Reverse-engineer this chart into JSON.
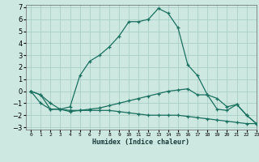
{
  "title": "",
  "xlabel": "Humidex (Indice chaleur)",
  "ylabel": "",
  "background_color": "#cce8e0",
  "grid_color": "#aacfc8",
  "line_color": "#1a7060",
  "xlim": [
    -0.5,
    23
  ],
  "ylim": [
    -3.2,
    7.2
  ],
  "xticks": [
    0,
    1,
    2,
    3,
    4,
    5,
    6,
    7,
    8,
    9,
    10,
    11,
    12,
    13,
    14,
    15,
    16,
    17,
    18,
    19,
    20,
    21,
    22,
    23
  ],
  "yticks": [
    -3,
    -2,
    -1,
    0,
    1,
    2,
    3,
    4,
    5,
    6,
    7
  ],
  "series": [
    [
      0.0,
      -0.3,
      -1.5,
      -1.5,
      -1.6,
      -1.6,
      -1.6,
      -1.6,
      -1.6,
      -1.7,
      -1.8,
      -1.9,
      -2.0,
      -2.0,
      -2.0,
      -2.0,
      -2.1,
      -2.2,
      -2.3,
      -2.4,
      -2.5,
      -2.6,
      -2.7,
      -2.7
    ],
    [
      0.0,
      -0.3,
      -1.0,
      -1.5,
      -1.7,
      -1.6,
      -1.5,
      -1.4,
      -1.2,
      -1.0,
      -0.8,
      -0.6,
      -0.4,
      -0.2,
      0.0,
      0.1,
      0.2,
      -0.3,
      -0.3,
      -1.5,
      -1.6,
      -1.1,
      -2.0,
      -2.7
    ],
    [
      0.0,
      -1.0,
      -1.5,
      -1.5,
      -1.3,
      1.3,
      2.5,
      3.0,
      3.7,
      4.6,
      5.8,
      5.8,
      6.0,
      6.9,
      6.5,
      5.3,
      2.2,
      1.3,
      -0.3,
      -0.6,
      -1.3,
      -1.1,
      -2.0,
      -2.7
    ]
  ]
}
